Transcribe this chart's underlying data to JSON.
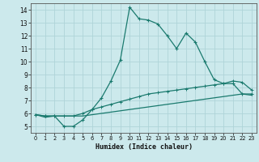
{
  "line1_x": [
    0,
    1,
    2,
    3,
    4,
    5,
    6,
    7,
    8,
    9,
    10,
    11,
    12,
    13,
    14,
    15,
    16,
    17,
    18,
    19,
    20,
    21,
    22,
    23
  ],
  "line1_y": [
    5.9,
    5.8,
    5.8,
    5.0,
    5.0,
    5.5,
    6.3,
    7.2,
    8.5,
    10.1,
    14.2,
    13.3,
    13.2,
    12.9,
    12.0,
    11.0,
    12.2,
    11.5,
    10.0,
    8.6,
    8.3,
    8.3,
    7.5,
    7.5
  ],
  "line2_x": [
    0,
    1,
    2,
    3,
    4,
    5,
    6,
    7,
    8,
    9,
    10,
    11,
    12,
    13,
    14,
    15,
    16,
    17,
    18,
    19,
    20,
    21,
    22,
    23
  ],
  "line2_y": [
    5.9,
    5.8,
    5.8,
    5.8,
    5.8,
    6.0,
    6.3,
    6.5,
    6.7,
    6.9,
    7.1,
    7.3,
    7.5,
    7.6,
    7.7,
    7.8,
    7.9,
    8.0,
    8.1,
    8.2,
    8.3,
    8.5,
    8.4,
    7.8
  ],
  "line3_x": [
    0,
    1,
    2,
    3,
    4,
    5,
    6,
    7,
    8,
    9,
    10,
    11,
    12,
    13,
    14,
    15,
    16,
    17,
    18,
    19,
    20,
    21,
    22,
    23
  ],
  "line3_y": [
    5.9,
    5.7,
    5.8,
    5.8,
    5.8,
    5.8,
    5.9,
    6.0,
    6.1,
    6.2,
    6.3,
    6.4,
    6.5,
    6.6,
    6.7,
    6.8,
    6.9,
    7.0,
    7.1,
    7.2,
    7.3,
    7.4,
    7.5,
    7.4
  ],
  "color": "#1a7a6e",
  "bg_color": "#cce9ec",
  "grid_color": "#afd4d8",
  "xlabel": "Humidex (Indice chaleur)",
  "xlim": [
    -0.5,
    23.5
  ],
  "ylim": [
    4.5,
    14.5
  ],
  "yticks": [
    5,
    6,
    7,
    8,
    9,
    10,
    11,
    12,
    13,
    14
  ],
  "xticks": [
    0,
    1,
    2,
    3,
    4,
    5,
    6,
    7,
    8,
    9,
    10,
    11,
    12,
    13,
    14,
    15,
    16,
    17,
    18,
    19,
    20,
    21,
    22,
    23
  ]
}
